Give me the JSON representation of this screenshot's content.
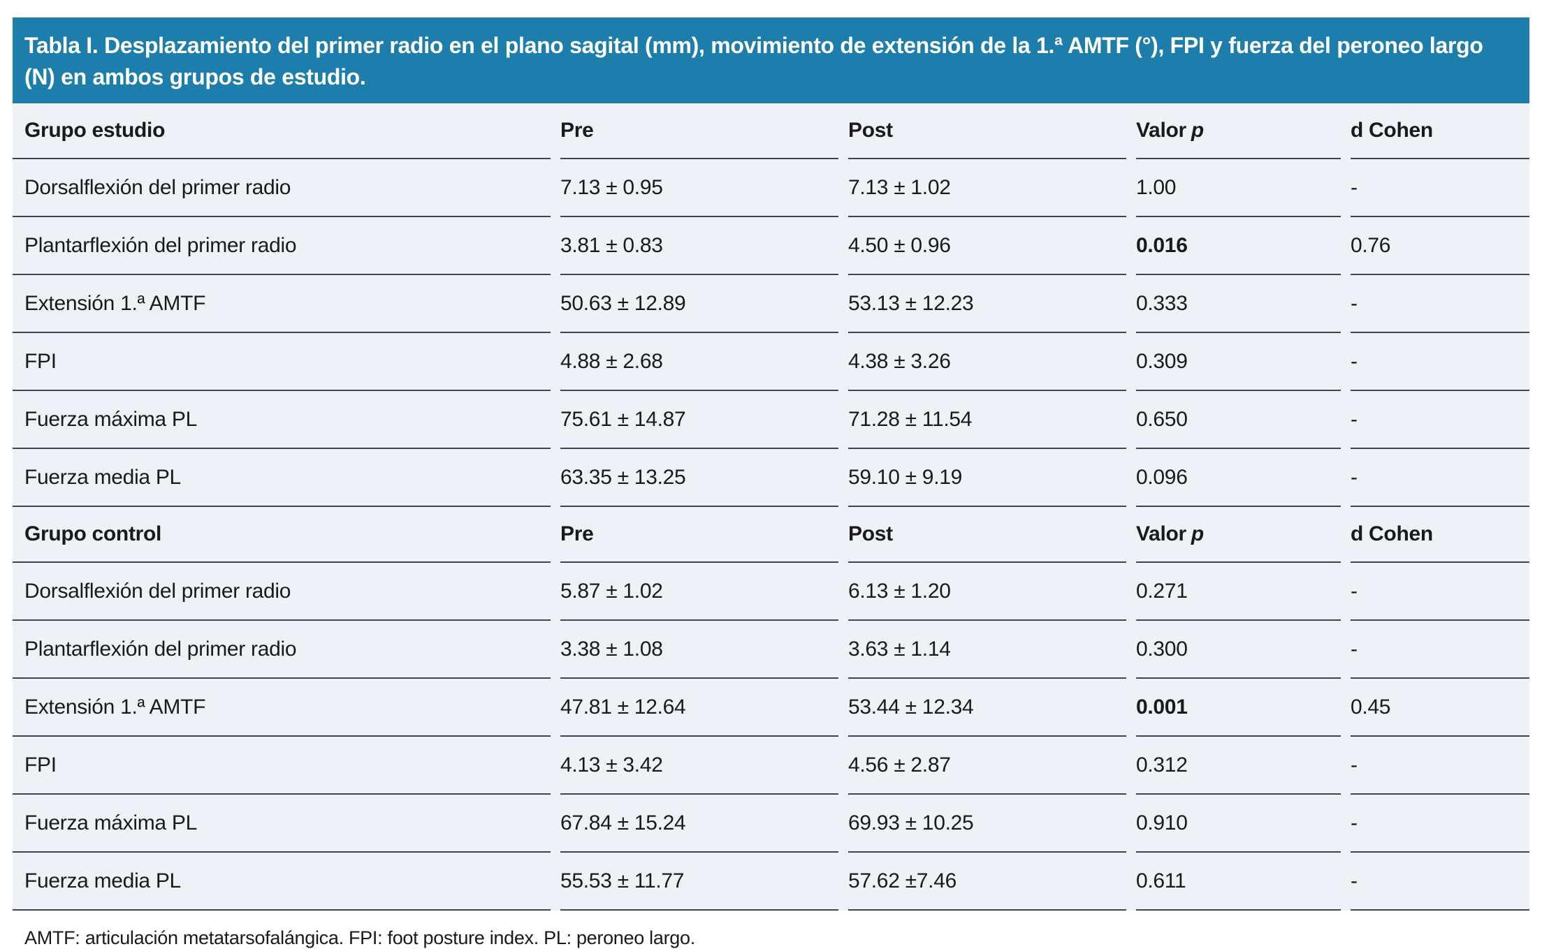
{
  "table": {
    "title": "Tabla I. Desplazamiento del primer radio en el plano sagital (mm), movimiento de extensión de la 1.ª AMTF (°), FPI y fuerza del peroneo largo (N) en ambos grupos de estudio.",
    "footnote": "AMTF: articulación metatarsofalángica. FPI: foot posture index. PL: peroneo largo.",
    "colors": {
      "title_bar_bg": "#1d7eac",
      "title_text": "#ffffff",
      "body_bg": "#eef1f6",
      "divider": "#3f454c",
      "text": "#1a1a1a"
    },
    "columns": {
      "pre": "Pre",
      "post": "Post",
      "p_prefix": "Valor",
      "p_symbol": "p",
      "d_cohen": "d Cohen"
    },
    "sections": [
      {
        "group_label": "Grupo estudio",
        "rows": [
          {
            "label": "Dorsalflexión del primer radio",
            "pre": "7.13 ± 0.95",
            "post": "7.13 ± 1.02",
            "p": "1.00",
            "p_bold": false,
            "d": "-"
          },
          {
            "label": "Plantarflexión del primer radio",
            "pre": "3.81 ± 0.83",
            "post": "4.50 ± 0.96",
            "p": "0.016",
            "p_bold": true,
            "d": "0.76"
          },
          {
            "label": "Extensión 1.ª AMTF",
            "pre": "50.63 ± 12.89",
            "post": "53.13 ± 12.23",
            "p": "0.333",
            "p_bold": false,
            "d": "-"
          },
          {
            "label": "FPI",
            "pre": "4.88 ± 2.68",
            "post": "4.38 ± 3.26",
            "p": "0.309",
            "p_bold": false,
            "d": "-"
          },
          {
            "label": "Fuerza máxima PL",
            "pre": "75.61 ± 14.87",
            "post": "71.28 ± 11.54",
            "p": "0.650",
            "p_bold": false,
            "d": "-"
          },
          {
            "label": "Fuerza media PL",
            "pre": "63.35 ± 13.25",
            "post": "59.10 ± 9.19",
            "p": "0.096",
            "p_bold": false,
            "d": "-"
          }
        ]
      },
      {
        "group_label": "Grupo control",
        "rows": [
          {
            "label": "Dorsalflexión del primer radio",
            "pre": "5.87 ± 1.02",
            "post": "6.13 ± 1.20",
            "p": "0.271",
            "p_bold": false,
            "d": "-"
          },
          {
            "label": "Plantarflexión del primer radio",
            "pre": "3.38 ± 1.08",
            "post": "3.63 ± 1.14",
            "p": "0.300",
            "p_bold": false,
            "d": "-"
          },
          {
            "label": "Extensión 1.ª AMTF",
            "pre": "47.81 ± 12.64",
            "post": "53.44 ± 12.34",
            "p": "0.001",
            "p_bold": true,
            "d": "0.45"
          },
          {
            "label": "FPI",
            "pre": "4.13 ± 3.42",
            "post": "4.56 ± 2.87",
            "p": "0.312",
            "p_bold": false,
            "d": "-"
          },
          {
            "label": "Fuerza máxima PL",
            "pre": "67.84 ± 15.24",
            "post": "69.93 ± 10.25",
            "p": "0.910",
            "p_bold": false,
            "d": "-"
          },
          {
            "label": "Fuerza media PL",
            "pre": "55.53 ± 11.77",
            "post": "57.62 ±7.46",
            "p": "0.611",
            "p_bold": false,
            "d": "-"
          }
        ]
      }
    ]
  }
}
